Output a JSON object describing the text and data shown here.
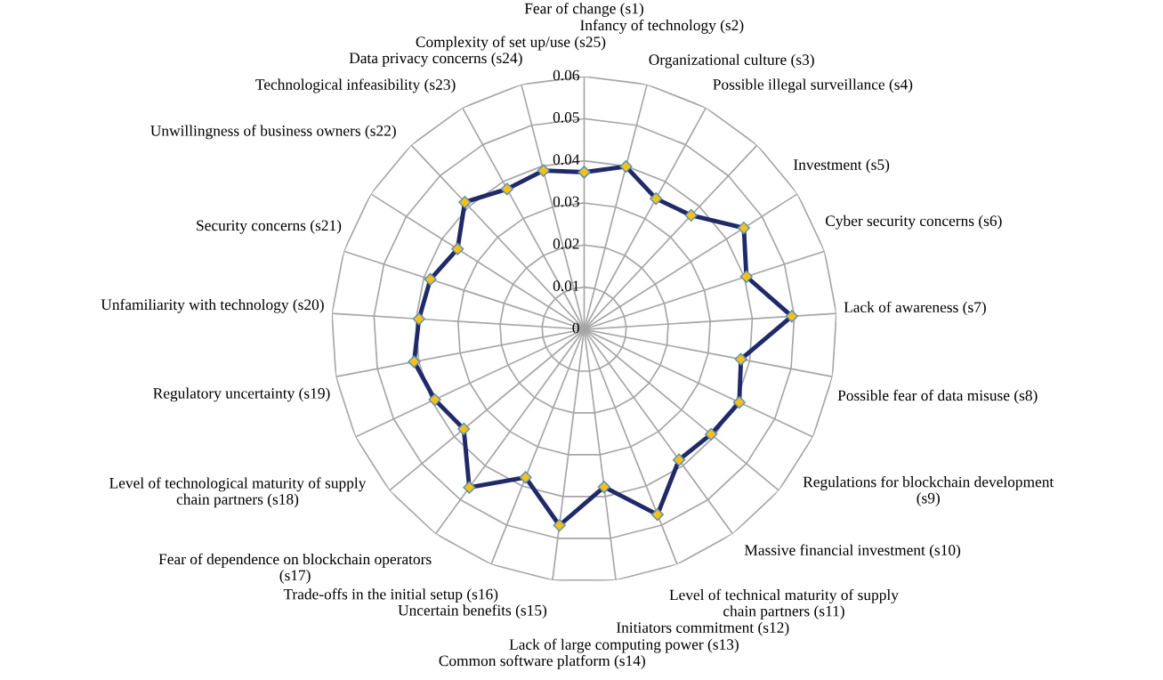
{
  "chart_data": {
    "type": "radar",
    "categories": [
      "Fear of change (s1)",
      "Infancy of technology (s2)",
      "Organizational culture (s3)",
      "Possible illegal surveillance (s4)",
      "Investment (s5)",
      "Cyber security concerns (s6)",
      "Lack of awareness (s7)",
      "Possible fear of data misuse (s8)",
      "Regulations for blockchain development (s9)",
      "Massive financial investment (s10)",
      "Level of technical maturity of supply chain partners (s11)",
      "Initiators commitment (s12)",
      "Lack of large computing power (s13)",
      "Common software platform (s14)",
      "Uncertain benefits (s15)",
      "Trade-offs in the initial setup (s16)",
      "Fear of dependence on blockchain operators (s17)",
      "Level of technological maturity of supply chain partners (s18)",
      "Regulatory uncertainty (s19)",
      "Unfamiliarity with technology (s20)",
      "Security concerns (s21)",
      "Unwillingness of business owners (s22)",
      "Technological infeasibility (s23)",
      "Data privacy concerns (s24)",
      "Complexity of set up/use (s25)"
    ],
    "series": [
      {
        "color": "#1f2a6e",
        "values": [
          0.0373,
          0.0399,
          0.0354,
          0.0371,
          0.0449,
          0.0405,
          0.0494,
          0.0379,
          0.0407,
          0.0391,
          0.0383,
          0.0473,
          0.0377,
          0.0469,
          0.0378,
          0.0464,
          0.0371,
          0.0392,
          0.0411,
          0.0393,
          0.0384,
          0.0356,
          0.0414,
          0.038,
          0.0389
        ]
      }
    ],
    "ylim": [
      0,
      0.06
    ],
    "yticks": [
      0,
      0.01,
      0.02,
      0.03,
      0.04,
      0.05,
      0.06
    ],
    "grid": true,
    "marker": "diamond"
  }
}
